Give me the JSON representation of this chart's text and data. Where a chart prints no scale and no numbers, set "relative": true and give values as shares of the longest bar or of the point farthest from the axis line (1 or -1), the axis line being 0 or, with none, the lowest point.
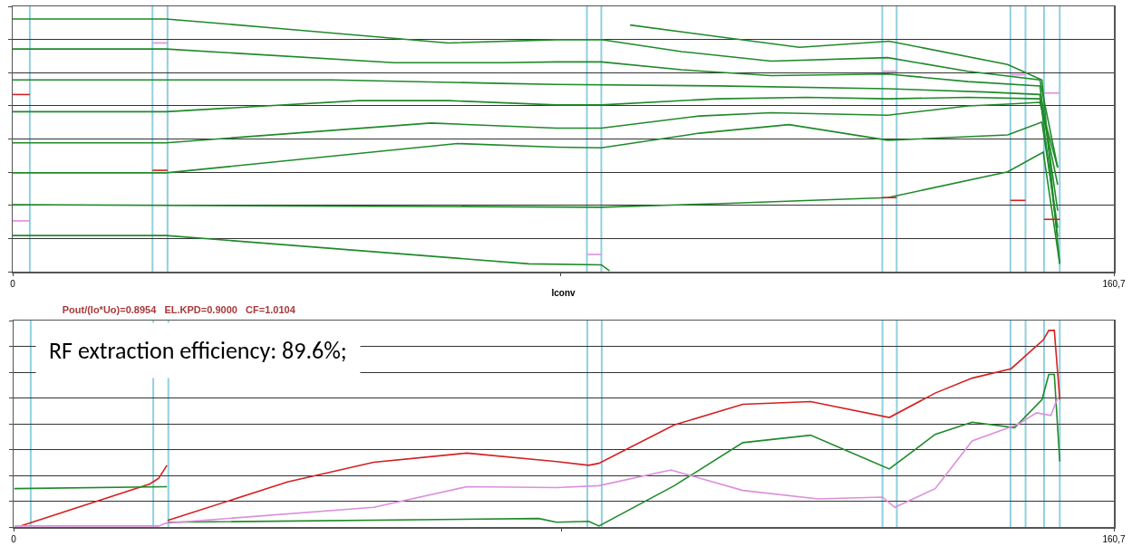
{
  "chart_data": [
    {
      "type": "line",
      "relative": true,
      "xlabel": "Iconv",
      "xlim": [
        0,
        160.7
      ],
      "xticks": [
        {
          "value": 0,
          "label": "0"
        },
        {
          "value": 80,
          "label": null
        },
        {
          "value": 160.7,
          "label": "160,7"
        }
      ],
      "grid": "y",
      "marker": "none",
      "line_style": "solid",
      "ref_lines": [
        {
          "axis": "x",
          "value": 2.5,
          "color": "#8fd0e0"
        },
        {
          "axis": "x",
          "value": 20.4,
          "color": "#8fd0e0"
        },
        {
          "axis": "x",
          "value": 22.6,
          "color": "#8fd0e0"
        },
        {
          "axis": "x",
          "value": 83.8,
          "color": "#8fd0e0"
        },
        {
          "axis": "x",
          "value": 85.9,
          "color": "#8fd0e0"
        },
        {
          "axis": "x",
          "value": 126.9,
          "color": "#8fd0e0"
        },
        {
          "axis": "x",
          "value": 129.0,
          "color": "#8fd0e0"
        },
        {
          "axis": "x",
          "value": 145.6,
          "color": "#8fd0e0"
        },
        {
          "axis": "x",
          "value": 147.8,
          "color": "#8fd0e0"
        },
        {
          "axis": "x",
          "value": 150.5,
          "color": "#8fd0e0"
        },
        {
          "axis": "x",
          "value": 152.8,
          "color": "#8fd0e0"
        }
      ],
      "series": [
        {
          "color": "#1f8a2a",
          "x": [
            0,
            22.4,
            37.4,
            63.6,
            79.3,
            85.9,
            97.6,
            110.7,
            127.7,
            139.4,
            149.9,
            152.5
          ],
          "values": [
            1.0,
            1.0,
            0.966,
            0.905,
            0.918,
            0.918,
            0.871,
            0.833,
            0.847,
            0.793,
            0.759,
            0.412
          ]
        },
        {
          "color": "#1f8a2a",
          "x": [
            0,
            22.4,
            55.7,
            71.4,
            79.3,
            85.9,
            97.6,
            110.7,
            127.7,
            139.4,
            149.9,
            152.5
          ],
          "values": [
            0.881,
            0.881,
            0.827,
            0.827,
            0.83,
            0.83,
            0.799,
            0.776,
            0.782,
            0.752,
            0.735,
            0.241
          ]
        },
        {
          "color": "#1f8a2a",
          "x": [
            0,
            46.6,
            71.4,
            79.3,
            102.8,
            127.7,
            142.0,
            149.9,
            152.5
          ],
          "values": [
            0.759,
            0.759,
            0.745,
            0.741,
            0.735,
            0.724,
            0.711,
            0.701,
            0.139
          ]
        },
        {
          "color": "#1f8a2a",
          "x": [
            0,
            22.4,
            50.5,
            63.6,
            79.3,
            85.9,
            102.8,
            115.9,
            127.7,
            139.4,
            149.9,
            152.5
          ],
          "values": [
            0.633,
            0.633,
            0.677,
            0.677,
            0.66,
            0.66,
            0.684,
            0.69,
            0.684,
            0.69,
            0.684,
            0.344
          ]
        },
        {
          "color": "#1f8a2a",
          "x": [
            0,
            22.4,
            61.0,
            79.3,
            85.9,
            100.2,
            110.7,
            127.7,
            139.4,
            145.2,
            149.9,
            152.5
          ],
          "values": [
            0.51,
            0.51,
            0.588,
            0.568,
            0.568,
            0.616,
            0.629,
            0.619,
            0.656,
            0.663,
            0.67,
            0.412
          ]
        },
        {
          "color": "#1f8a2a",
          "x": [
            0,
            22.4,
            64.9,
            79.3,
            85.9,
            100.2,
            113.3,
            127.7,
            145.2,
            150.2,
            152.5
          ],
          "values": [
            0.391,
            0.391,
            0.507,
            0.493,
            0.49,
            0.548,
            0.582,
            0.52,
            0.541,
            0.592,
            0.173
          ]
        },
        {
          "color": "#1f8a2a",
          "x": [
            0,
            85.9,
            102.8,
            127.7,
            145.2,
            150.4,
            152.8
          ],
          "values": [
            0.265,
            0.255,
            0.269,
            0.293,
            0.395,
            0.473,
            0.031
          ]
        },
        {
          "color": "#1f8a2a",
          "x": [
            0,
            22.4,
            75.3,
            85.9,
            87.1
          ],
          "values": [
            0.143,
            0.143,
            0.031,
            0.027,
            0.003
          ]
        },
        {
          "color": "#1f8a2a",
          "x": [
            90.1,
            114.8,
            127.9,
            145.2,
            150.2,
            152.8
          ],
          "values": [
            0.976,
            0.888,
            0.912,
            0.82,
            0.759,
            0.031
          ]
        },
        {
          "color": "#d42020",
          "x": [
            0,
            2.5,
            2.6,
            20.4,
            22.6,
            22.7,
            126.9,
            129.0,
            129.1,
            145.6,
            147.8,
            147.9,
            150.5,
            152.8
          ],
          "values": [
            0.701,
            0.701,
            null,
            0.401,
            0.401,
            null,
            0.293,
            0.293,
            null,
            0.282,
            0.282,
            null,
            0.207,
            0.207
          ]
        },
        {
          "color": "#dc8fdc",
          "x": [
            0,
            2.5,
            2.6,
            20.4,
            22.6,
            22.7,
            83.8,
            85.9,
            86.0,
            126.9,
            129.0,
            129.1,
            145.6,
            147.8,
            147.9,
            150.5,
            152.8
          ],
          "values": [
            0.201,
            0.201,
            null,
            0.905,
            0.905,
            null,
            0.068,
            0.068,
            null,
            0.793,
            0.793,
            null,
            0.779,
            0.779,
            null,
            0.707,
            0.707
          ]
        }
      ]
    },
    {
      "type": "line",
      "relative": true,
      "title": "Pout/(Io*Uo)=0.8954   EL.KPD=0.9000   CF=1.0104",
      "xlim": [
        0,
        160.7
      ],
      "xticks": [
        {
          "value": 0,
          "label": "0"
        },
        {
          "value": 80,
          "label": null
        },
        {
          "value": 160.7,
          "label": "160,7"
        }
      ],
      "grid": "y",
      "marker": "none",
      "line_style": "solid",
      "annotations": [
        "RF extraction efficiency: 89.6%;"
      ],
      "ref_lines": [
        {
          "axis": "x",
          "value": 2.5,
          "color": "#8fd0e0"
        },
        {
          "axis": "x",
          "value": 20.4,
          "color": "#8fd0e0"
        },
        {
          "axis": "x",
          "value": 22.6,
          "color": "#8fd0e0"
        },
        {
          "axis": "x",
          "value": 83.8,
          "color": "#8fd0e0"
        },
        {
          "axis": "x",
          "value": 85.9,
          "color": "#8fd0e0"
        },
        {
          "axis": "x",
          "value": 126.9,
          "color": "#8fd0e0"
        },
        {
          "axis": "x",
          "value": 129.0,
          "color": "#8fd0e0"
        },
        {
          "axis": "x",
          "value": 145.6,
          "color": "#8fd0e0"
        },
        {
          "axis": "x",
          "value": 147.8,
          "color": "#8fd0e0"
        },
        {
          "axis": "x",
          "value": 150.5,
          "color": "#8fd0e0"
        },
        {
          "axis": "x",
          "value": 152.8,
          "color": "#8fd0e0"
        }
      ],
      "series": [
        {
          "color": "#d42020",
          "x": [
            1.0,
            19.9,
            21.2,
            22.4,
            22.45,
            22.5,
            40.0,
            52.6,
            66.2,
            79.3,
            84.0,
            85.5,
            96.5,
            106.5,
            116.4,
            127.9,
            134.6,
            140.0,
            145.7,
            150.4,
            151.2,
            152.0,
            152.8
          ],
          "values": [
            0.005,
            0.219,
            0.248,
            0.314,
            null,
            0.033,
            0.229,
            0.329,
            0.376,
            0.333,
            0.314,
            0.324,
            0.519,
            0.624,
            0.638,
            0.557,
            0.681,
            0.757,
            0.805,
            0.952,
            1.0,
            1.0,
            0.648
          ]
        },
        {
          "color": "#1f8a2a",
          "x": [
            0.1,
            22.4,
            22.45,
            22.5,
            76.7,
            79.3,
            84.0,
            85.5,
            96.5,
            106.5,
            116.4,
            127.9,
            134.6,
            140.0,
            146.2,
            150.2,
            151.2,
            152.0,
            152.8
          ],
          "values": [
            0.195,
            0.205,
            null,
            0.024,
            0.043,
            0.024,
            0.029,
            0.005,
            0.21,
            0.429,
            0.467,
            0.295,
            0.471,
            0.533,
            0.505,
            0.648,
            0.776,
            0.776,
            0.333
          ]
        },
        {
          "color": "#dc8fdc",
          "x": [
            0.1,
            21.2,
            22.2,
            52.6,
            66.2,
            79.3,
            85.5,
            96.0,
            106.5,
            117.5,
            126.9,
            128.7,
            134.6,
            140.0,
            146.8,
            149.4,
            151.5,
            152.5
          ],
          "values": [
            0.005,
            0.005,
            0.019,
            0.1,
            0.205,
            0.2,
            0.21,
            0.29,
            0.186,
            0.143,
            0.152,
            0.1,
            0.195,
            0.438,
            0.524,
            0.581,
            0.567,
            0.657
          ]
        }
      ]
    }
  ]
}
